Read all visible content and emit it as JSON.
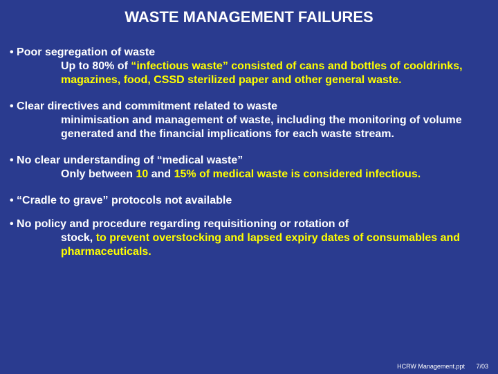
{
  "background_color": "#2a3b8f",
  "text_colors": {
    "white": "#ffffff",
    "yellow": "#ffff00"
  },
  "title_fontsize": 22,
  "body_fontsize": 16,
  "footer_fontsize": 9,
  "title": "WASTE MANAGEMENT FAILURES",
  "bullets": [
    {
      "lead_white": "• Poor segregation of waste",
      "sub_white_1": "Up to 80% of ",
      "sub_yellow": "“infectious waste” consisted of cans and bottles of cooldrinks, magazines, food, CSSD sterilized paper and other general waste."
    },
    {
      "lead_white": "• Clear directives and commitment related to waste",
      "sub_white": "minimisation and management of waste, including the monitoring of volume generated and the financial implications for each waste stream."
    },
    {
      "lead_white": "• No clear understanding of “medical waste”",
      "sub_white_1": "Only between ",
      "sub_yellow_1": "10",
      "sub_white_2": " and ",
      "sub_yellow_2": "15% of medical waste is considered infectious."
    },
    {
      "lead_white": "• “Cradle to grave” protocols not available"
    },
    {
      "lead_white": "• No policy and procedure regarding requisitioning or rotation of",
      "sub_white_1": "stock, ",
      "sub_yellow": "to prevent overstocking and lapsed expiry dates of consumables and pharmaceuticals."
    }
  ],
  "footer": {
    "file": "HCRW Management.ppt",
    "date": "7/03"
  }
}
